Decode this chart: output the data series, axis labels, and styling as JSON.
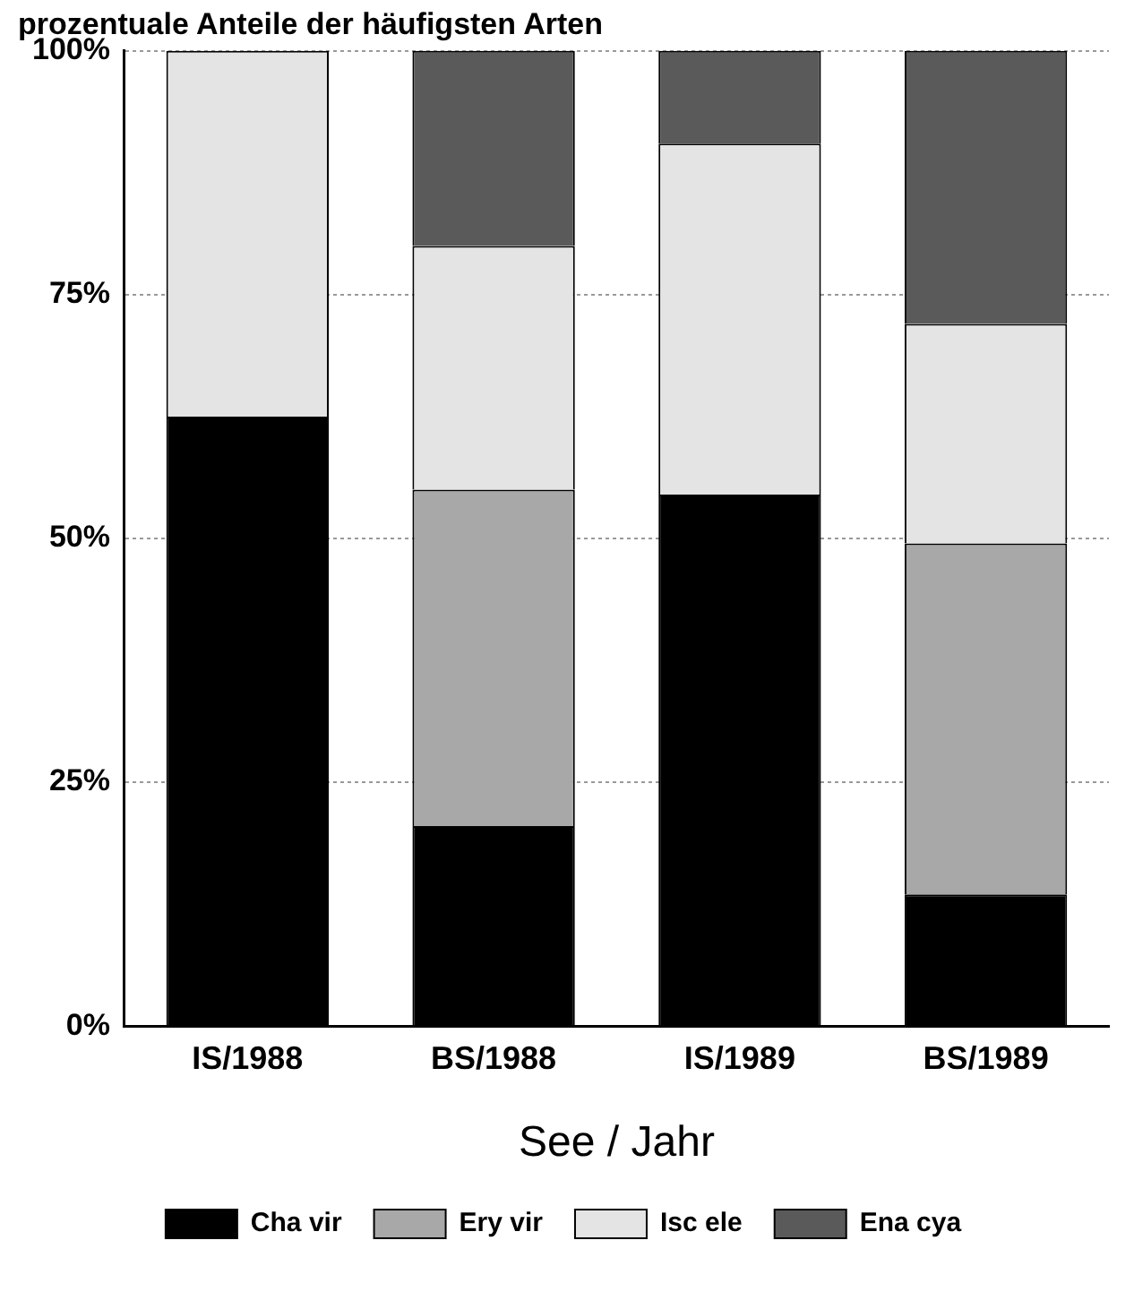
{
  "chart_data": {
    "type": "bar",
    "stacked": true,
    "title": "prozentuale Anteile der häufigsten Arten",
    "xlabel": "See / Jahr",
    "categories": [
      "IS/1988",
      "BS/1988",
      "IS/1989",
      "BS/1989"
    ],
    "series": [
      {
        "name": "Cha vir",
        "color": "#000000",
        "values": [
          62.5,
          20.5,
          54.5,
          13.5
        ]
      },
      {
        "name": "Ery vir",
        "color": "#a8a8a8",
        "values": [
          0,
          34.5,
          0,
          36
        ]
      },
      {
        "name": "Isc ele",
        "color": "#e4e4e4",
        "values": [
          37.5,
          25,
          36,
          22.5
        ]
      },
      {
        "name": "Ena cya",
        "color": "#5a5a5a",
        "values": [
          0,
          20,
          9.5,
          28
        ]
      }
    ],
    "ylim": [
      0,
      100
    ],
    "yticks": [
      {
        "value": 0,
        "label": "0%"
      },
      {
        "value": 25,
        "label": "25%"
      },
      {
        "value": 50,
        "label": "50%"
      },
      {
        "value": 75,
        "label": "75%"
      },
      {
        "value": 100,
        "label": "100%"
      }
    ],
    "grid": "y",
    "legend": "bottom"
  }
}
